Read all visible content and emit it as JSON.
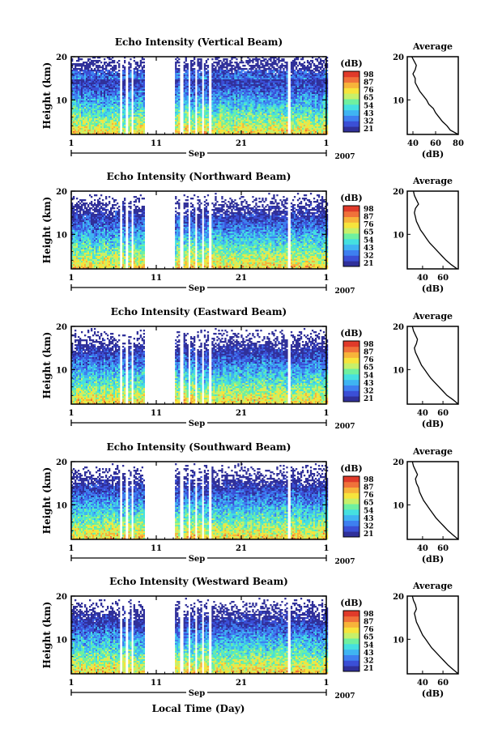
{
  "figure": {
    "xlabel_bottom": "Local Time (Day)",
    "month_label": "Sep",
    "year_label": "2007"
  },
  "colorbar": {
    "title": "(dB)",
    "tick_labels": [
      "98",
      "87",
      "76",
      "65",
      "54",
      "43",
      "32",
      "21"
    ],
    "colors": [
      "#30309a",
      "#3b4fd6",
      "#3e7ff0",
      "#3fb4f2",
      "#45e0e0",
      "#6ff0a0",
      "#c7f06a",
      "#f6e43c",
      "#f7b33a",
      "#f0713a",
      "#e03a2a"
    ]
  },
  "chart_data": [
    {
      "type": "heatmap",
      "title": "Echo Intensity (Vertical Beam)",
      "ylabel": "Height (km)",
      "xticks": [
        "1",
        "11",
        "21",
        "1"
      ],
      "yticks": [
        "20",
        "10"
      ],
      "xlim_day": [
        1,
        31
      ],
      "ylim_km": [
        2,
        20
      ],
      "data_days": [
        [
          1,
          6.7
        ],
        [
          7.0,
          7.3
        ],
        [
          7.7,
          8.0
        ],
        [
          8.3,
          9.6
        ],
        [
          13.2,
          13.7
        ],
        [
          14.2,
          14.6
        ],
        [
          15.0,
          15.4
        ],
        [
          15.8,
          16.2
        ],
        [
          16.6,
          17.0
        ],
        [
          17.5,
          26.3
        ],
        [
          26.8,
          31
        ]
      ],
      "noise_ceiling_km": 20,
      "average_profile": {
        "title": "Average",
        "xlabel": "(dB)",
        "xticks": [
          "40",
          "60",
          "80"
        ],
        "xlim": [
          35,
          80
        ],
        "yticks": [
          "20",
          "10"
        ],
        "height_km": [
          2,
          3,
          4,
          5,
          6,
          7,
          8,
          9,
          10,
          11,
          12,
          13,
          14,
          15,
          16,
          17,
          18,
          19,
          20
        ],
        "db": [
          80,
          73,
          70,
          66,
          63,
          60,
          58,
          54,
          52,
          49,
          46,
          44,
          42,
          42,
          40,
          42,
          43,
          41,
          39
        ]
      }
    },
    {
      "type": "heatmap",
      "title": "Echo Intensity (Northward Beam)",
      "ylabel": "Height (km)",
      "xticks": [
        "1",
        "11",
        "21",
        "1"
      ],
      "yticks": [
        "20",
        "10"
      ],
      "xlim_day": [
        1,
        31
      ],
      "ylim_km": [
        2,
        20
      ],
      "data_days": [
        [
          1,
          6.7
        ],
        [
          7.0,
          7.3
        ],
        [
          7.7,
          8.0
        ],
        [
          8.3,
          9.6
        ],
        [
          13.2,
          13.7
        ],
        [
          14.2,
          14.6
        ],
        [
          15.0,
          15.4
        ],
        [
          15.8,
          16.2
        ],
        [
          16.6,
          17.0
        ],
        [
          17.5,
          26.3
        ],
        [
          26.8,
          31
        ]
      ],
      "noise_ceiling_km": 18,
      "average_profile": {
        "title": "Average",
        "xlabel": "(dB)",
        "xticks": [
          "40",
          "60"
        ],
        "xlim": [
          25,
          75
        ],
        "yticks": [
          "20",
          "10"
        ],
        "height_km": [
          2,
          3,
          4,
          5,
          6,
          7,
          8,
          9,
          10,
          11,
          12,
          13,
          14,
          15,
          16,
          17,
          18,
          19,
          20
        ],
        "db": [
          74,
          68,
          63,
          59,
          55,
          51,
          47,
          44,
          41,
          38,
          36,
          34,
          33,
          32,
          33,
          36,
          34,
          32,
          31
        ]
      }
    },
    {
      "type": "heatmap",
      "title": "Echo Intensity (Eastward Beam)",
      "ylabel": "Height (km)",
      "xticks": [
        "1",
        "11",
        "21",
        "1"
      ],
      "yticks": [
        "20",
        "10"
      ],
      "xlim_day": [
        1,
        31
      ],
      "ylim_km": [
        2,
        20
      ],
      "data_days": [
        [
          1,
          6.7
        ],
        [
          7.0,
          7.3
        ],
        [
          7.7,
          8.0
        ],
        [
          8.3,
          9.6
        ],
        [
          13.2,
          13.7
        ],
        [
          14.2,
          14.6
        ],
        [
          15.0,
          15.4
        ],
        [
          15.8,
          16.2
        ],
        [
          16.6,
          17.0
        ],
        [
          17.5,
          26.3
        ],
        [
          26.8,
          31
        ]
      ],
      "noise_ceiling_km": 18,
      "average_profile": {
        "title": "Average",
        "xlabel": "(dB)",
        "xticks": [
          "40",
          "60"
        ],
        "xlim": [
          25,
          75
        ],
        "yticks": [
          "20",
          "10"
        ],
        "height_km": [
          2,
          3,
          4,
          5,
          6,
          7,
          8,
          9,
          10,
          11,
          12,
          13,
          14,
          15,
          16,
          17,
          18,
          19,
          20
        ],
        "db": [
          75,
          70,
          64,
          60,
          56,
          52,
          48,
          45,
          42,
          39,
          37,
          35,
          33,
          32,
          34,
          35,
          33,
          31,
          30
        ]
      }
    },
    {
      "type": "heatmap",
      "title": "Echo Intensity (Southward Beam)",
      "ylabel": "Height (km)",
      "xticks": [
        "1",
        "11",
        "21",
        "1"
      ],
      "yticks": [
        "20",
        "10"
      ],
      "xlim_day": [
        1,
        31
      ],
      "ylim_km": [
        2,
        20
      ],
      "data_days": [
        [
          1,
          6.7
        ],
        [
          7.0,
          7.3
        ],
        [
          7.7,
          8.0
        ],
        [
          8.3,
          9.6
        ],
        [
          13.2,
          13.7
        ],
        [
          14.2,
          14.6
        ],
        [
          15.0,
          15.4
        ],
        [
          15.8,
          16.2
        ],
        [
          16.6,
          17.0
        ],
        [
          17.5,
          26.3
        ],
        [
          26.8,
          31
        ]
      ],
      "noise_ceiling_km": 18,
      "average_profile": {
        "title": "Average",
        "xlabel": "(dB)",
        "xticks": [
          "40",
          "60"
        ],
        "xlim": [
          25,
          75
        ],
        "yticks": [
          "20",
          "10"
        ],
        "height_km": [
          2,
          3,
          4,
          5,
          6,
          7,
          8,
          9,
          10,
          11,
          12,
          13,
          14,
          15,
          16,
          17,
          18,
          19,
          20
        ],
        "db": [
          75,
          70,
          65,
          61,
          57,
          53,
          50,
          47,
          44,
          41,
          39,
          37,
          36,
          34,
          33,
          35,
          33,
          31,
          30
        ]
      }
    },
    {
      "type": "heatmap",
      "title": "Echo Intensity (Westward Beam)",
      "ylabel": "Height (km)",
      "xticks": [
        "1",
        "11",
        "21",
        "1"
      ],
      "yticks": [
        "20",
        "10"
      ],
      "xlim_day": [
        1,
        31
      ],
      "ylim_km": [
        2,
        20
      ],
      "data_days": [
        [
          1,
          6.7
        ],
        [
          7.0,
          7.3
        ],
        [
          7.7,
          8.0
        ],
        [
          8.3,
          9.6
        ],
        [
          13.2,
          13.7
        ],
        [
          14.2,
          14.6
        ],
        [
          15.0,
          15.4
        ],
        [
          15.8,
          16.2
        ],
        [
          16.6,
          17.0
        ],
        [
          17.5,
          26.3
        ],
        [
          26.8,
          31
        ]
      ],
      "noise_ceiling_km": 18,
      "average_profile": {
        "title": "Average",
        "xlabel": "(dB)",
        "xticks": [
          "40",
          "60"
        ],
        "xlim": [
          25,
          75
        ],
        "yticks": [
          "20",
          "10"
        ],
        "height_km": [
          2,
          3,
          4,
          5,
          6,
          7,
          8,
          9,
          10,
          11,
          12,
          13,
          14,
          15,
          16,
          17,
          18,
          19,
          20
        ],
        "db": [
          75,
          70,
          65,
          61,
          57,
          53,
          49,
          46,
          43,
          40,
          38,
          36,
          34,
          33,
          32,
          34,
          33,
          31,
          30
        ]
      }
    }
  ]
}
